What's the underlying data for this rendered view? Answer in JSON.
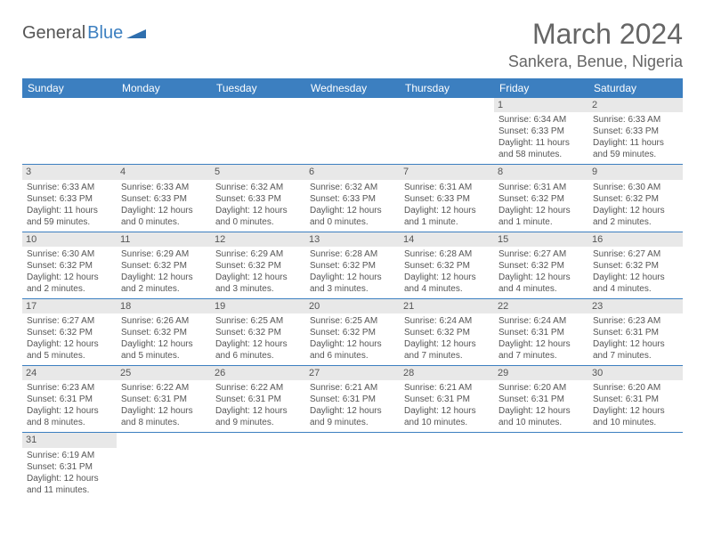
{
  "brand": {
    "part1": "General",
    "part2": "Blue"
  },
  "title": "March 2024",
  "location": "Sankera, Benue, Nigeria",
  "colors": {
    "header_bg": "#3c7fc0",
    "daynum_bg": "#e8e8e8",
    "text": "#555555",
    "border": "#3c7fc0"
  },
  "weekdays": [
    "Sunday",
    "Monday",
    "Tuesday",
    "Wednesday",
    "Thursday",
    "Friday",
    "Saturday"
  ],
  "weeks": [
    [
      null,
      null,
      null,
      null,
      null,
      {
        "n": "1",
        "sr": "Sunrise: 6:34 AM",
        "ss": "Sunset: 6:33 PM",
        "dl1": "Daylight: 11 hours",
        "dl2": "and 58 minutes."
      },
      {
        "n": "2",
        "sr": "Sunrise: 6:33 AM",
        "ss": "Sunset: 6:33 PM",
        "dl1": "Daylight: 11 hours",
        "dl2": "and 59 minutes."
      }
    ],
    [
      {
        "n": "3",
        "sr": "Sunrise: 6:33 AM",
        "ss": "Sunset: 6:33 PM",
        "dl1": "Daylight: 11 hours",
        "dl2": "and 59 minutes."
      },
      {
        "n": "4",
        "sr": "Sunrise: 6:33 AM",
        "ss": "Sunset: 6:33 PM",
        "dl1": "Daylight: 12 hours",
        "dl2": "and 0 minutes."
      },
      {
        "n": "5",
        "sr": "Sunrise: 6:32 AM",
        "ss": "Sunset: 6:33 PM",
        "dl1": "Daylight: 12 hours",
        "dl2": "and 0 minutes."
      },
      {
        "n": "6",
        "sr": "Sunrise: 6:32 AM",
        "ss": "Sunset: 6:33 PM",
        "dl1": "Daylight: 12 hours",
        "dl2": "and 0 minutes."
      },
      {
        "n": "7",
        "sr": "Sunrise: 6:31 AM",
        "ss": "Sunset: 6:33 PM",
        "dl1": "Daylight: 12 hours",
        "dl2": "and 1 minute."
      },
      {
        "n": "8",
        "sr": "Sunrise: 6:31 AM",
        "ss": "Sunset: 6:32 PM",
        "dl1": "Daylight: 12 hours",
        "dl2": "and 1 minute."
      },
      {
        "n": "9",
        "sr": "Sunrise: 6:30 AM",
        "ss": "Sunset: 6:32 PM",
        "dl1": "Daylight: 12 hours",
        "dl2": "and 2 minutes."
      }
    ],
    [
      {
        "n": "10",
        "sr": "Sunrise: 6:30 AM",
        "ss": "Sunset: 6:32 PM",
        "dl1": "Daylight: 12 hours",
        "dl2": "and 2 minutes."
      },
      {
        "n": "11",
        "sr": "Sunrise: 6:29 AM",
        "ss": "Sunset: 6:32 PM",
        "dl1": "Daylight: 12 hours",
        "dl2": "and 2 minutes."
      },
      {
        "n": "12",
        "sr": "Sunrise: 6:29 AM",
        "ss": "Sunset: 6:32 PM",
        "dl1": "Daylight: 12 hours",
        "dl2": "and 3 minutes."
      },
      {
        "n": "13",
        "sr": "Sunrise: 6:28 AM",
        "ss": "Sunset: 6:32 PM",
        "dl1": "Daylight: 12 hours",
        "dl2": "and 3 minutes."
      },
      {
        "n": "14",
        "sr": "Sunrise: 6:28 AM",
        "ss": "Sunset: 6:32 PM",
        "dl1": "Daylight: 12 hours",
        "dl2": "and 4 minutes."
      },
      {
        "n": "15",
        "sr": "Sunrise: 6:27 AM",
        "ss": "Sunset: 6:32 PM",
        "dl1": "Daylight: 12 hours",
        "dl2": "and 4 minutes."
      },
      {
        "n": "16",
        "sr": "Sunrise: 6:27 AM",
        "ss": "Sunset: 6:32 PM",
        "dl1": "Daylight: 12 hours",
        "dl2": "and 4 minutes."
      }
    ],
    [
      {
        "n": "17",
        "sr": "Sunrise: 6:27 AM",
        "ss": "Sunset: 6:32 PM",
        "dl1": "Daylight: 12 hours",
        "dl2": "and 5 minutes."
      },
      {
        "n": "18",
        "sr": "Sunrise: 6:26 AM",
        "ss": "Sunset: 6:32 PM",
        "dl1": "Daylight: 12 hours",
        "dl2": "and 5 minutes."
      },
      {
        "n": "19",
        "sr": "Sunrise: 6:25 AM",
        "ss": "Sunset: 6:32 PM",
        "dl1": "Daylight: 12 hours",
        "dl2": "and 6 minutes."
      },
      {
        "n": "20",
        "sr": "Sunrise: 6:25 AM",
        "ss": "Sunset: 6:32 PM",
        "dl1": "Daylight: 12 hours",
        "dl2": "and 6 minutes."
      },
      {
        "n": "21",
        "sr": "Sunrise: 6:24 AM",
        "ss": "Sunset: 6:32 PM",
        "dl1": "Daylight: 12 hours",
        "dl2": "and 7 minutes."
      },
      {
        "n": "22",
        "sr": "Sunrise: 6:24 AM",
        "ss": "Sunset: 6:31 PM",
        "dl1": "Daylight: 12 hours",
        "dl2": "and 7 minutes."
      },
      {
        "n": "23",
        "sr": "Sunrise: 6:23 AM",
        "ss": "Sunset: 6:31 PM",
        "dl1": "Daylight: 12 hours",
        "dl2": "and 7 minutes."
      }
    ],
    [
      {
        "n": "24",
        "sr": "Sunrise: 6:23 AM",
        "ss": "Sunset: 6:31 PM",
        "dl1": "Daylight: 12 hours",
        "dl2": "and 8 minutes."
      },
      {
        "n": "25",
        "sr": "Sunrise: 6:22 AM",
        "ss": "Sunset: 6:31 PM",
        "dl1": "Daylight: 12 hours",
        "dl2": "and 8 minutes."
      },
      {
        "n": "26",
        "sr": "Sunrise: 6:22 AM",
        "ss": "Sunset: 6:31 PM",
        "dl1": "Daylight: 12 hours",
        "dl2": "and 9 minutes."
      },
      {
        "n": "27",
        "sr": "Sunrise: 6:21 AM",
        "ss": "Sunset: 6:31 PM",
        "dl1": "Daylight: 12 hours",
        "dl2": "and 9 minutes."
      },
      {
        "n": "28",
        "sr": "Sunrise: 6:21 AM",
        "ss": "Sunset: 6:31 PM",
        "dl1": "Daylight: 12 hours",
        "dl2": "and 10 minutes."
      },
      {
        "n": "29",
        "sr": "Sunrise: 6:20 AM",
        "ss": "Sunset: 6:31 PM",
        "dl1": "Daylight: 12 hours",
        "dl2": "and 10 minutes."
      },
      {
        "n": "30",
        "sr": "Sunrise: 6:20 AM",
        "ss": "Sunset: 6:31 PM",
        "dl1": "Daylight: 12 hours",
        "dl2": "and 10 minutes."
      }
    ],
    [
      {
        "n": "31",
        "sr": "Sunrise: 6:19 AM",
        "ss": "Sunset: 6:31 PM",
        "dl1": "Daylight: 12 hours",
        "dl2": "and 11 minutes."
      },
      null,
      null,
      null,
      null,
      null,
      null
    ]
  ]
}
